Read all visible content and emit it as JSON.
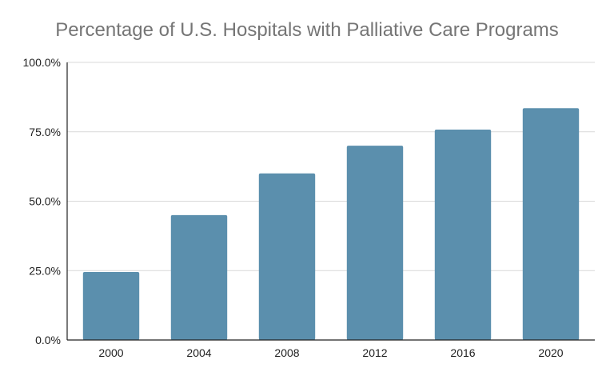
{
  "chart_data": {
    "type": "bar",
    "title": "Percentage of U.S. Hospitals with Palliative Care Programs",
    "xlabel": "",
    "ylabel": "",
    "categories": [
      "2000",
      "2004",
      "2008",
      "2012",
      "2016",
      "2020"
    ],
    "series": [
      {
        "values": [
          24.5,
          45.0,
          60.0,
          70.0,
          75.8,
          83.5
        ]
      }
    ],
    "ylim": [
      0,
      100
    ],
    "y_ticks": [
      0,
      25,
      50,
      75,
      100
    ],
    "y_tick_labels": [
      "0.0%",
      "25.0%",
      "50.0%",
      "75.0%",
      "100.0%"
    ],
    "grid": true,
    "legend": "none",
    "colors": {
      "bar": "#5b8fad",
      "grid": "#d9d9d9",
      "axis": "#222222",
      "title": "#757575"
    }
  }
}
